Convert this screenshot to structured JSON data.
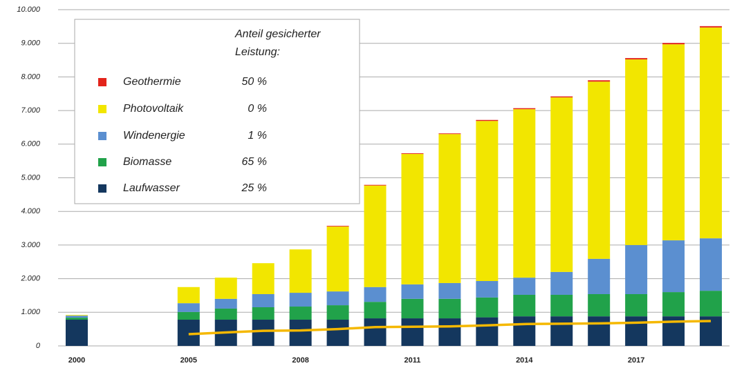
{
  "chart_data": {
    "type": "bar",
    "stacked": true,
    "categories": [
      "2000",
      null,
      null,
      "2005",
      null,
      null,
      "2008",
      null,
      null,
      "2011",
      null,
      null,
      "2014",
      null,
      null,
      "2017",
      null,
      null
    ],
    "series": [
      {
        "name": "Laufwasser",
        "color": "#14375e",
        "share_label": "25 %",
        "values": [
          780,
          null,
          null,
          780,
          780,
          780,
          780,
          780,
          820,
          820,
          820,
          850,
          880,
          880,
          880,
          880,
          880,
          880
        ]
      },
      {
        "name": "Biomasse",
        "color": "#21a24a",
        "share_label": "65 %",
        "values": [
          60,
          null,
          null,
          230,
          330,
          370,
          390,
          430,
          490,
          580,
          580,
          590,
          640,
          640,
          660,
          660,
          720,
          760
        ]
      },
      {
        "name": "Windenergie",
        "color": "#5b8fd0",
        "share_label": "1 %",
        "values": [
          60,
          null,
          null,
          260,
          290,
          390,
          410,
          410,
          440,
          430,
          470,
          490,
          510,
          680,
          1050,
          1460,
          1540,
          1560
        ]
      },
      {
        "name": "Photovoltaik",
        "color": "#f2e600",
        "share_label": "0 %",
        "values": [
          20,
          null,
          null,
          480,
          630,
          920,
          1290,
          1930,
          3020,
          3880,
          4430,
          4760,
          5010,
          5190,
          5270,
          5520,
          5830,
          6270
        ]
      },
      {
        "name": "Geothermie",
        "color": "#e3241b",
        "share_label": "50 %",
        "values": [
          0,
          null,
          null,
          0,
          0,
          0,
          0,
          20,
          20,
          20,
          20,
          30,
          30,
          30,
          40,
          40,
          40,
          40
        ]
      }
    ],
    "line": {
      "color": "#f5b800",
      "values": [
        null,
        null,
        null,
        350,
        400,
        450,
        460,
        500,
        560,
        570,
        580,
        610,
        650,
        660,
        670,
        690,
        720,
        740
      ]
    },
    "legend_title": [
      "Anteil gesicherter",
      "Leistung:"
    ],
    "ylim": [
      0,
      10000
    ],
    "yticks": [
      0,
      {
        "value": 1000,
        "label": "1.000"
      },
      {
        "value": 2000,
        "label": "2.000"
      },
      {
        "value": 3000,
        "label": "3.000"
      },
      {
        "value": 4000,
        "label": "4.000"
      },
      {
        "value": 5000,
        "label": "5.000"
      },
      {
        "value": 6000,
        "label": "6.000"
      },
      {
        "value": 7000,
        "label": "7.000"
      },
      {
        "value": 8000,
        "label": "8.000"
      },
      {
        "value": 9000,
        "label": "9.000"
      },
      {
        "value": 10000,
        "label": "10.000"
      }
    ],
    "grid": true
  }
}
